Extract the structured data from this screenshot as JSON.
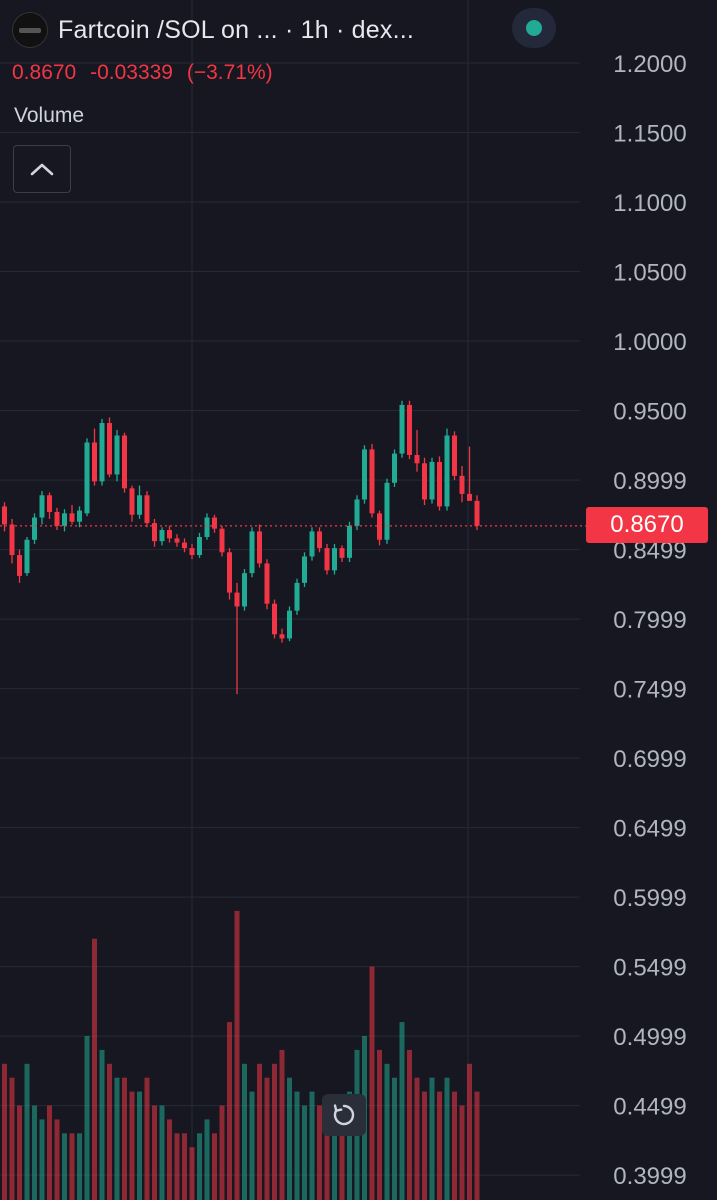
{
  "header": {
    "title": "Fartcoin /SOL on ... · 1h · dex...",
    "last_price": "0.8670",
    "change": "-0.03339",
    "change_pct": "(−3.71%)",
    "volume_label": "Volume"
  },
  "icons": {
    "logo": "token-logo-icon",
    "status": "status-dot-icon",
    "collapse": "chevron-up-icon",
    "reset": "reset-icon"
  },
  "colors": {
    "up": "#22ab94",
    "down": "#f23645",
    "background": "#161721",
    "grid": "#262a36"
  },
  "price_tag": "0.8670",
  "chart_data": {
    "type": "candlestick",
    "y_axis_ticks": [
      "1.2000",
      "1.1500",
      "1.1000",
      "1.0500",
      "1.0000",
      "0.9500",
      "0.8999",
      "0.8499",
      "0.7999",
      "0.7499",
      "0.6999",
      "0.6499",
      "0.5999",
      "0.5499",
      "0.4999",
      "0.4499",
      "0.3999"
    ],
    "ylim": [
      0.39,
      1.21
    ],
    "last_price_line": 0.867,
    "candles": [
      [
        0.931,
        0.942,
        0.879,
        0.881
      ],
      [
        0.881,
        0.884,
        0.863,
        0.868
      ],
      [
        0.868,
        0.872,
        0.84,
        0.846
      ],
      [
        0.846,
        0.85,
        0.826,
        0.831
      ],
      [
        0.833,
        0.859,
        0.831,
        0.857
      ],
      [
        0.857,
        0.876,
        0.854,
        0.873
      ],
      [
        0.873,
        0.892,
        0.868,
        0.889
      ],
      [
        0.889,
        0.891,
        0.872,
        0.877
      ],
      [
        0.877,
        0.88,
        0.864,
        0.867
      ],
      [
        0.867,
        0.879,
        0.863,
        0.876
      ],
      [
        0.876,
        0.882,
        0.868,
        0.87
      ],
      [
        0.87,
        0.881,
        0.866,
        0.878
      ],
      [
        0.876,
        0.93,
        0.874,
        0.927
      ],
      [
        0.927,
        0.937,
        0.896,
        0.899
      ],
      [
        0.899,
        0.944,
        0.896,
        0.941
      ],
      [
        0.941,
        0.945,
        0.902,
        0.904
      ],
      [
        0.904,
        0.936,
        0.899,
        0.932
      ],
      [
        0.932,
        0.934,
        0.891,
        0.894
      ],
      [
        0.894,
        0.896,
        0.87,
        0.875
      ],
      [
        0.875,
        0.896,
        0.872,
        0.889
      ],
      [
        0.889,
        0.892,
        0.866,
        0.869
      ],
      [
        0.869,
        0.872,
        0.852,
        0.856
      ],
      [
        0.856,
        0.866,
        0.853,
        0.864
      ],
      [
        0.864,
        0.867,
        0.855,
        0.858
      ],
      [
        0.858,
        0.861,
        0.852,
        0.855
      ],
      [
        0.855,
        0.858,
        0.848,
        0.851
      ],
      [
        0.851,
        0.854,
        0.843,
        0.846
      ],
      [
        0.846,
        0.862,
        0.844,
        0.859
      ],
      [
        0.859,
        0.876,
        0.857,
        0.873
      ],
      [
        0.873,
        0.875,
        0.862,
        0.865
      ],
      [
        0.865,
        0.867,
        0.845,
        0.848
      ],
      [
        0.848,
        0.851,
        0.814,
        0.819
      ],
      [
        0.819,
        0.826,
        0.746,
        0.809
      ],
      [
        0.809,
        0.836,
        0.806,
        0.833
      ],
      [
        0.833,
        0.866,
        0.83,
        0.863
      ],
      [
        0.863,
        0.868,
        0.837,
        0.84
      ],
      [
        0.84,
        0.843,
        0.807,
        0.811
      ],
      [
        0.811,
        0.814,
        0.786,
        0.789
      ],
      [
        0.789,
        0.793,
        0.783,
        0.786
      ],
      [
        0.786,
        0.809,
        0.784,
        0.806
      ],
      [
        0.806,
        0.829,
        0.803,
        0.826
      ],
      [
        0.826,
        0.848,
        0.823,
        0.845
      ],
      [
        0.845,
        0.866,
        0.842,
        0.863
      ],
      [
        0.863,
        0.866,
        0.848,
        0.851
      ],
      [
        0.851,
        0.854,
        0.832,
        0.835
      ],
      [
        0.835,
        0.854,
        0.832,
        0.851
      ],
      [
        0.851,
        0.853,
        0.841,
        0.844
      ],
      [
        0.844,
        0.87,
        0.841,
        0.867
      ],
      [
        0.867,
        0.889,
        0.864,
        0.886
      ],
      [
        0.886,
        0.925,
        0.883,
        0.922
      ],
      [
        0.922,
        0.926,
        0.873,
        0.876
      ],
      [
        0.876,
        0.878,
        0.853,
        0.857
      ],
      [
        0.857,
        0.901,
        0.854,
        0.898
      ],
      [
        0.898,
        0.922,
        0.895,
        0.919
      ],
      [
        0.919,
        0.957,
        0.916,
        0.954
      ],
      [
        0.954,
        0.957,
        0.915,
        0.918
      ],
      [
        0.918,
        0.936,
        0.906,
        0.912
      ],
      [
        0.912,
        0.916,
        0.882,
        0.886
      ],
      [
        0.886,
        0.916,
        0.883,
        0.913
      ],
      [
        0.913,
        0.917,
        0.878,
        0.881
      ],
      [
        0.881,
        0.937,
        0.878,
        0.932
      ],
      [
        0.932,
        0.935,
        0.9,
        0.903
      ],
      [
        0.903,
        0.91,
        0.884,
        0.89
      ],
      [
        0.89,
        0.924,
        0.887,
        0.885
      ],
      [
        0.885,
        0.889,
        0.864,
        0.867
      ]
    ],
    "volumes": [
      0.48,
      0.48,
      0.47,
      0.45,
      0.48,
      0.45,
      0.44,
      0.45,
      0.44,
      0.43,
      0.43,
      0.43,
      0.5,
      0.57,
      0.49,
      0.48,
      0.47,
      0.47,
      0.46,
      0.46,
      0.47,
      0.45,
      0.45,
      0.44,
      0.43,
      0.43,
      0.42,
      0.43,
      0.44,
      0.43,
      0.45,
      0.51,
      0.59,
      0.48,
      0.46,
      0.48,
      0.47,
      0.48,
      0.49,
      0.47,
      0.46,
      0.45,
      0.46,
      0.45,
      0.44,
      0.45,
      0.44,
      0.46,
      0.49,
      0.5,
      0.55,
      0.49,
      0.48,
      0.47,
      0.51,
      0.49,
      0.47,
      0.46,
      0.47,
      0.46,
      0.47,
      0.46,
      0.45,
      0.48,
      0.46
    ]
  }
}
